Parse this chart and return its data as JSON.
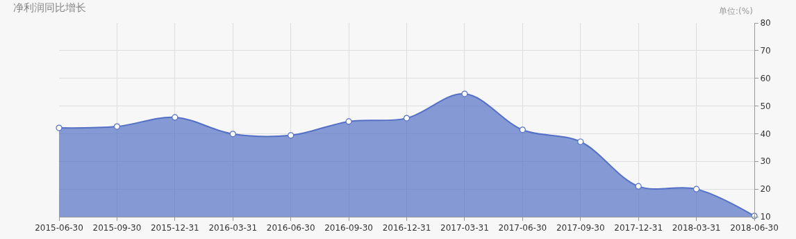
{
  "chart_data": {
    "type": "area",
    "title": "净利润同比增长",
    "annotations": [
      "单位:(%)"
    ],
    "categories": [
      "2015-06-30",
      "2015-09-30",
      "2015-12-31",
      "2016-03-31",
      "2016-06-30",
      "2016-09-30",
      "2016-12-31",
      "2017-03-31",
      "2017-06-30",
      "2017-09-30",
      "2017-12-31",
      "2018-03-31",
      "2018-06-30"
    ],
    "series": [
      {
        "color": "#5470c6",
        "values": [
          42.1,
          42.6,
          45.9,
          39.9,
          39.4,
          44.4,
          45.6,
          54.4,
          41.4,
          37.1,
          21.0,
          20.0,
          10.3
        ]
      }
    ],
    "ylim": [
      10,
      80
    ],
    "yticks": [
      10,
      20,
      30,
      40,
      50,
      60,
      70,
      80
    ],
    "grid": true,
    "marker": "circle",
    "line_style": "solid"
  }
}
